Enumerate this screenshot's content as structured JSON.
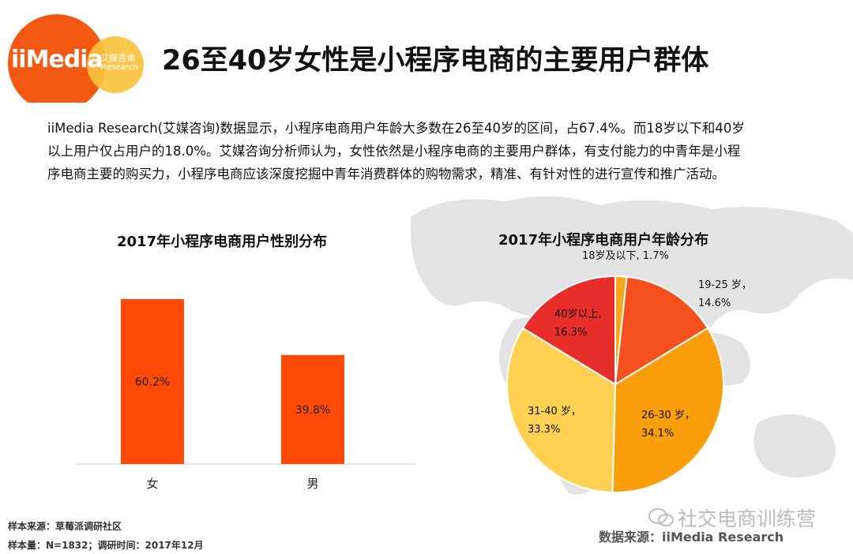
{
  "header": {
    "logo_text": "iiMedia",
    "logo_sub_cn": "艾媒咨询",
    "logo_sub_en": "Research",
    "title": "26至40岁女性是小程序电商的主要用户群体"
  },
  "intro": {
    "line1": "iiMedia Research(艾媒咨询)数据显示，小程序电商用户年龄大多数在26至40岁的区间，占67.4%。而18岁以下和40岁",
    "line2": "以上用户仅占用户的18.0%。艾媒咨询分析师认为，女性依然是小程序电商的主要用户群体，有支付能力的中青年是小程",
    "line3": "序电商主要的购买力，小程序电商应该深度挖掘中青年消费群体的购物需求，精准、有针对性的进行宣传和推广活动。"
  },
  "chart_data": [
    {
      "type": "bar",
      "title": "2017年小程序电商用户性别分布",
      "categories": [
        "女",
        "男"
      ],
      "values": [
        60.2,
        39.8
      ],
      "value_labels": [
        "60.2%",
        "39.8%"
      ],
      "ylim": [
        0,
        70
      ],
      "grid": false,
      "color": "#FF4A08"
    },
    {
      "type": "pie",
      "title": "2017年小程序电商用户年龄分布",
      "slices": [
        {
          "label": "18岁及以下",
          "value": 1.7,
          "text1": "18岁及以下, 1.7%",
          "color": "#F7A71A"
        },
        {
          "label": "19-25 岁",
          "value": 14.6,
          "text1": "19-25 岁，",
          "text2": "14.6%",
          "color": "#F4511E"
        },
        {
          "label": "26-30 岁",
          "value": 34.1,
          "text1": "26-30 岁，",
          "text2": "34.1%",
          "color": "#FB9E0B"
        },
        {
          "label": "31-40 岁",
          "value": 33.3,
          "text1": "31-40 岁，",
          "text2": "33.3%",
          "color": "#FFD152"
        },
        {
          "label": "40岁以上",
          "value": 16.3,
          "text1": "40岁以上,",
          "text2": "16.3%",
          "color": "#E72E2A"
        }
      ]
    }
  ],
  "footer": {
    "sample_source": "样本来源：草莓派调研社区",
    "sample_size": "样本量：N=1832；调研时间：2017年12月",
    "data_source": "数据来源：iiMedia Research",
    "watermark": "社交电商训练营"
  }
}
